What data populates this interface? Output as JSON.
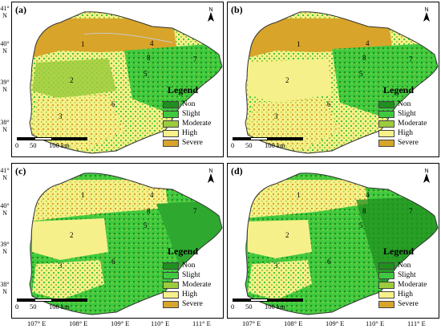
{
  "panels": [
    {
      "label": "(a)",
      "north": "N"
    },
    {
      "label": "(b)",
      "north": "N"
    },
    {
      "label": "(c)",
      "north": "N"
    },
    {
      "label": "(d)",
      "north": "N"
    }
  ],
  "legend": {
    "title": "Legend",
    "items": [
      {
        "label": "Non",
        "color": "#1f8f1f"
      },
      {
        "label": "Slight",
        "color": "#3fc93f"
      },
      {
        "label": "Moderate",
        "color": "#9ccc3c"
      },
      {
        "label": "High",
        "color": "#f6f08a"
      },
      {
        "label": "Severe",
        "color": "#d8a42a"
      }
    ]
  },
  "scalebar": {
    "ticks": [
      "0",
      "50",
      "100 km"
    ]
  },
  "region_numbers": [
    "1",
    "2",
    "3",
    "4",
    "5",
    "6",
    "7",
    "8"
  ],
  "y_axis_labels": [
    "41° N",
    "40° N",
    "39° N",
    "38° N"
  ],
  "x_axis_labels": [
    "107° E",
    "108° E",
    "109° E",
    "110° E",
    "111° E"
  ]
}
